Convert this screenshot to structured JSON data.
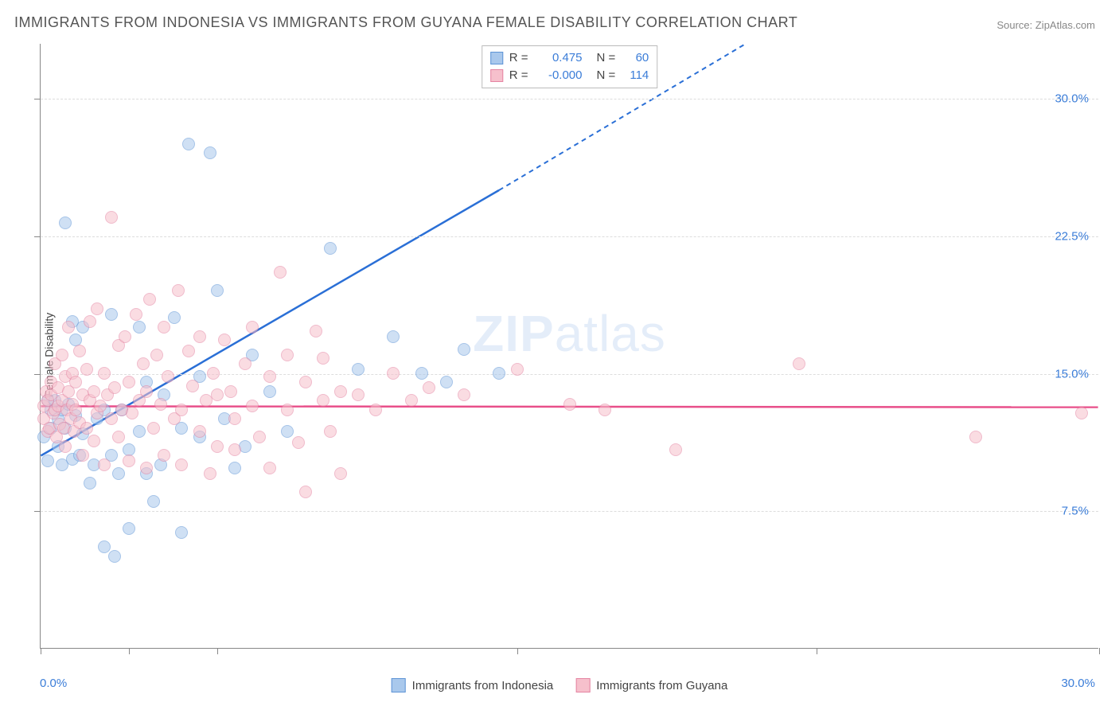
{
  "title": "IMMIGRANTS FROM INDONESIA VS IMMIGRANTS FROM GUYANA FEMALE DISABILITY CORRELATION CHART",
  "source": "Source: ZipAtlas.com",
  "watermark_bold": "ZIP",
  "watermark_light": "atlas",
  "y_axis_label": "Female Disability",
  "x_min_label": "0.0%",
  "x_max_label": "30.0%",
  "chart": {
    "type": "scatter",
    "xlim": [
      0,
      30
    ],
    "ylim": [
      0,
      33
    ],
    "y_ticks": [
      7.5,
      15.0,
      22.5,
      30.0
    ],
    "y_tick_labels": [
      "7.5%",
      "15.0%",
      "22.5%",
      "30.0%"
    ],
    "x_ticks": [
      0,
      2.5,
      5,
      13.5,
      22,
      30
    ],
    "background_color": "#ffffff",
    "grid_color": "#dddddd",
    "axis_color": "#888888",
    "tick_label_color": "#3b7dd8",
    "point_radius": 8,
    "point_opacity": 0.55
  },
  "series": [
    {
      "key": "indonesia",
      "label": "Immigrants from Indonesia",
      "fill": "#a9c8ec",
      "stroke": "#5e94d6",
      "line_color": "#2a6fd6",
      "R_label": "R =",
      "R": "0.475",
      "N_label": "N =",
      "N": "60",
      "trend": {
        "x1": 0,
        "y1": 10.5,
        "x2_solid": 13,
        "y2_solid": 25,
        "x2_dash": 20,
        "y2_dash": 33
      },
      "points": [
        [
          0.1,
          11.5
        ],
        [
          0.2,
          13.5
        ],
        [
          0.2,
          10.2
        ],
        [
          0.3,
          13.0
        ],
        [
          0.3,
          12.0
        ],
        [
          0.4,
          13.5
        ],
        [
          0.5,
          12.5
        ],
        [
          0.5,
          11.0
        ],
        [
          0.6,
          10.0
        ],
        [
          0.6,
          13.0
        ],
        [
          0.7,
          12.0
        ],
        [
          0.7,
          23.2
        ],
        [
          0.8,
          13.3
        ],
        [
          0.9,
          17.8
        ],
        [
          0.9,
          10.3
        ],
        [
          1.0,
          12.7
        ],
        [
          1.0,
          16.8
        ],
        [
          1.1,
          10.5
        ],
        [
          1.2,
          11.7
        ],
        [
          1.2,
          17.5
        ],
        [
          1.4,
          9.0
        ],
        [
          1.5,
          10.0
        ],
        [
          1.6,
          12.5
        ],
        [
          1.8,
          5.5
        ],
        [
          1.8,
          13.0
        ],
        [
          2.0,
          10.5
        ],
        [
          2.0,
          18.2
        ],
        [
          2.1,
          5.0
        ],
        [
          2.2,
          9.5
        ],
        [
          2.3,
          13.0
        ],
        [
          2.5,
          6.5
        ],
        [
          2.5,
          10.8
        ],
        [
          2.8,
          17.5
        ],
        [
          2.8,
          11.8
        ],
        [
          3.0,
          9.5
        ],
        [
          3.0,
          14.5
        ],
        [
          3.2,
          8.0
        ],
        [
          3.4,
          10.0
        ],
        [
          3.5,
          13.8
        ],
        [
          3.8,
          18.0
        ],
        [
          4.0,
          12.0
        ],
        [
          4.0,
          6.3
        ],
        [
          4.2,
          27.5
        ],
        [
          4.5,
          14.8
        ],
        [
          4.5,
          11.5
        ],
        [
          4.8,
          27.0
        ],
        [
          5.0,
          19.5
        ],
        [
          5.2,
          12.5
        ],
        [
          5.5,
          9.8
        ],
        [
          5.8,
          11.0
        ],
        [
          6.0,
          16.0
        ],
        [
          6.5,
          14.0
        ],
        [
          7.0,
          11.8
        ],
        [
          8.2,
          21.8
        ],
        [
          9.0,
          15.2
        ],
        [
          10.0,
          17.0
        ],
        [
          10.8,
          15.0
        ],
        [
          11.5,
          14.5
        ],
        [
          12.0,
          16.3
        ],
        [
          13.0,
          15.0
        ]
      ]
    },
    {
      "key": "guyana",
      "label": "Immigrants from Guyana",
      "fill": "#f6c0cc",
      "stroke": "#e584a2",
      "line_color": "#e84f8a",
      "R_label": "R =",
      "R": "-0.000",
      "N_label": "N =",
      "N": "114",
      "trend": {
        "x1": 0,
        "y1": 13.2,
        "x2_solid": 30,
        "y2_solid": 13.15,
        "x2_dash": 30,
        "y2_dash": 13.15
      },
      "points": [
        [
          0.1,
          12.5
        ],
        [
          0.1,
          13.2
        ],
        [
          0.15,
          14.0
        ],
        [
          0.2,
          11.8
        ],
        [
          0.2,
          13.5
        ],
        [
          0.25,
          12.0
        ],
        [
          0.3,
          13.8
        ],
        [
          0.3,
          14.5
        ],
        [
          0.35,
          12.8
        ],
        [
          0.4,
          13.0
        ],
        [
          0.4,
          15.5
        ],
        [
          0.45,
          11.5
        ],
        [
          0.5,
          13.2
        ],
        [
          0.5,
          14.2
        ],
        [
          0.55,
          12.2
        ],
        [
          0.6,
          13.5
        ],
        [
          0.6,
          16.0
        ],
        [
          0.65,
          12.0
        ],
        [
          0.7,
          14.8
        ],
        [
          0.7,
          11.0
        ],
        [
          0.75,
          13.0
        ],
        [
          0.8,
          14.0
        ],
        [
          0.8,
          17.5
        ],
        [
          0.85,
          12.5
        ],
        [
          0.9,
          13.3
        ],
        [
          0.9,
          15.0
        ],
        [
          0.95,
          11.8
        ],
        [
          1.0,
          14.5
        ],
        [
          1.0,
          13.0
        ],
        [
          1.1,
          12.3
        ],
        [
          1.1,
          16.2
        ],
        [
          1.2,
          13.8
        ],
        [
          1.2,
          10.5
        ],
        [
          1.3,
          15.2
        ],
        [
          1.3,
          12.0
        ],
        [
          1.4,
          13.5
        ],
        [
          1.4,
          17.8
        ],
        [
          1.5,
          11.3
        ],
        [
          1.5,
          14.0
        ],
        [
          1.6,
          18.5
        ],
        [
          1.6,
          12.8
        ],
        [
          1.7,
          13.2
        ],
        [
          1.8,
          15.0
        ],
        [
          1.8,
          10.0
        ],
        [
          1.9,
          13.8
        ],
        [
          2.0,
          23.5
        ],
        [
          2.0,
          12.5
        ],
        [
          2.1,
          14.2
        ],
        [
          2.2,
          16.5
        ],
        [
          2.2,
          11.5
        ],
        [
          2.3,
          13.0
        ],
        [
          2.4,
          17.0
        ],
        [
          2.5,
          10.2
        ],
        [
          2.5,
          14.5
        ],
        [
          2.6,
          12.8
        ],
        [
          2.7,
          18.2
        ],
        [
          2.8,
          13.5
        ],
        [
          2.9,
          15.5
        ],
        [
          3.0,
          9.8
        ],
        [
          3.0,
          14.0
        ],
        [
          3.1,
          19.0
        ],
        [
          3.2,
          12.0
        ],
        [
          3.3,
          16.0
        ],
        [
          3.4,
          13.3
        ],
        [
          3.5,
          10.5
        ],
        [
          3.5,
          17.5
        ],
        [
          3.6,
          14.8
        ],
        [
          3.8,
          12.5
        ],
        [
          3.9,
          19.5
        ],
        [
          4.0,
          13.0
        ],
        [
          4.0,
          10.0
        ],
        [
          4.2,
          16.2
        ],
        [
          4.3,
          14.3
        ],
        [
          4.5,
          11.8
        ],
        [
          4.5,
          17.0
        ],
        [
          4.7,
          13.5
        ],
        [
          4.8,
          9.5
        ],
        [
          4.9,
          15.0
        ],
        [
          5.0,
          13.8
        ],
        [
          5.0,
          11.0
        ],
        [
          5.2,
          16.8
        ],
        [
          5.4,
          14.0
        ],
        [
          5.5,
          12.5
        ],
        [
          5.5,
          10.8
        ],
        [
          5.8,
          15.5
        ],
        [
          6.0,
          13.2
        ],
        [
          6.0,
          17.5
        ],
        [
          6.2,
          11.5
        ],
        [
          6.5,
          14.8
        ],
        [
          6.5,
          9.8
        ],
        [
          6.8,
          20.5
        ],
        [
          7.0,
          13.0
        ],
        [
          7.0,
          16.0
        ],
        [
          7.3,
          11.2
        ],
        [
          7.5,
          14.5
        ],
        [
          7.5,
          8.5
        ],
        [
          7.8,
          17.3
        ],
        [
          8.0,
          13.5
        ],
        [
          8.0,
          15.8
        ],
        [
          8.2,
          11.8
        ],
        [
          8.5,
          14.0
        ],
        [
          8.5,
          9.5
        ],
        [
          9.0,
          13.8
        ],
        [
          9.5,
          13.0
        ],
        [
          10.0,
          15.0
        ],
        [
          10.5,
          13.5
        ],
        [
          11.0,
          14.2
        ],
        [
          12.0,
          13.8
        ],
        [
          13.5,
          15.2
        ],
        [
          15.0,
          13.3
        ],
        [
          16.0,
          13.0
        ],
        [
          18.0,
          10.8
        ],
        [
          21.5,
          15.5
        ],
        [
          26.5,
          11.5
        ],
        [
          29.5,
          12.8
        ]
      ]
    }
  ]
}
